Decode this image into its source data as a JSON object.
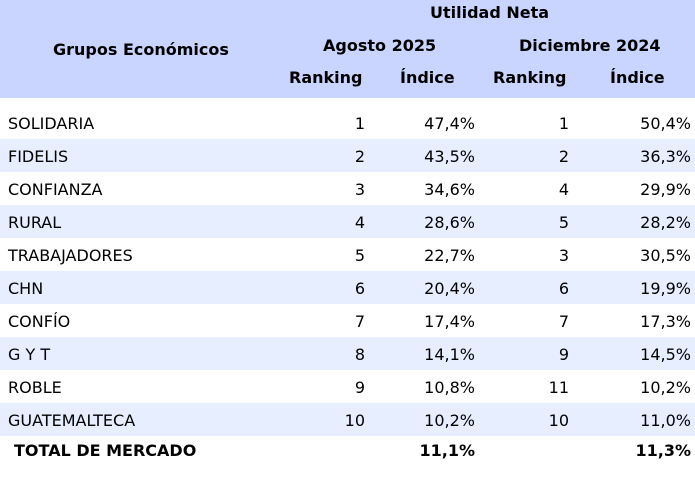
{
  "header": {
    "group_label": "Grupos Económicos",
    "metric": "Utilidad Neta",
    "period1": "Agosto 2025",
    "period2": "Diciembre 2024",
    "ranking_label": "Ranking",
    "index_label": "Índice"
  },
  "rows": [
    {
      "name": "SOLIDARIA",
      "rank_p1": "1",
      "index_p1": "47,4%",
      "rank_p2": "1",
      "index_p2": "50,4%"
    },
    {
      "name": "FIDELIS",
      "rank_p1": "2",
      "index_p1": "43,5%",
      "rank_p2": "2",
      "index_p2": "36,3%"
    },
    {
      "name": "CONFIANZA",
      "rank_p1": "3",
      "index_p1": "34,6%",
      "rank_p2": "4",
      "index_p2": "29,9%"
    },
    {
      "name": "RURAL",
      "rank_p1": "4",
      "index_p1": "28,6%",
      "rank_p2": "5",
      "index_p2": "28,2%"
    },
    {
      "name": "TRABAJADORES",
      "rank_p1": "5",
      "index_p1": "22,7%",
      "rank_p2": "3",
      "index_p2": "30,5%"
    },
    {
      "name": "CHN",
      "rank_p1": "6",
      "index_p1": "20,4%",
      "rank_p2": "6",
      "index_p2": "19,9%"
    },
    {
      "name": "CONFÍO",
      "rank_p1": "7",
      "index_p1": "17,4%",
      "rank_p2": "7",
      "index_p2": "17,3%"
    },
    {
      "name": "G Y T",
      "rank_p1": "8",
      "index_p1": "14,1%",
      "rank_p2": "9",
      "index_p2": "14,5%"
    },
    {
      "name": "ROBLE",
      "rank_p1": "9",
      "index_p1": "10,8%",
      "rank_p2": "11",
      "index_p2": "10,2%"
    },
    {
      "name": "GUATEMALTECA",
      "rank_p1": "10",
      "index_p1": "10,2%",
      "rank_p2": "10",
      "index_p2": "11,0%"
    }
  ],
  "total": {
    "name": "TOTAL DE MERCADO",
    "index_p1": "11,1%",
    "index_p2": "11,3%"
  },
  "colors": {
    "header_bg": "#c9d5ff",
    "alt_row_bg": "#e6eeff"
  }
}
